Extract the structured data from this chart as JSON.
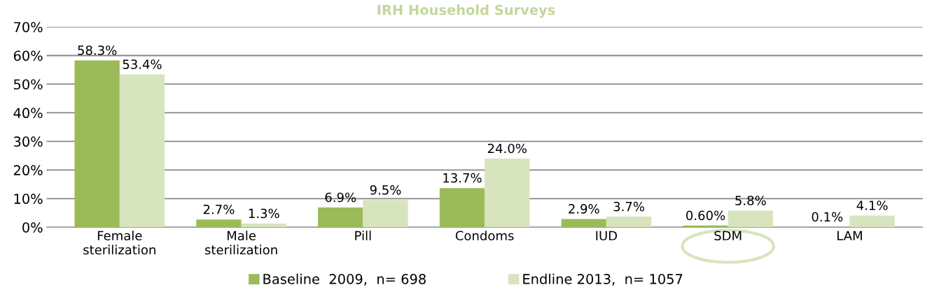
{
  "chart_data": {
    "type": "bar",
    "title": "IRH Household Surveys",
    "categories": [
      "Female\nsterilization",
      "Male\nsterilization",
      "Pill",
      "Condoms",
      "IUD",
      "SDM",
      "LAM"
    ],
    "series": [
      {
        "name": "Baseline  2009,  n= 698",
        "color": "#9bbb59",
        "values": [
          58.3,
          2.7,
          6.9,
          13.7,
          2.9,
          0.6,
          0.1
        ],
        "value_labels": [
          "58.3%",
          "2.7%",
          "6.9%",
          "13.7%",
          "2.9%",
          "0.60%",
          "0.1%"
        ]
      },
      {
        "name": "Endline 2013,  n= 1057",
        "color": "#d7e4bd",
        "values": [
          53.4,
          1.3,
          9.5,
          24.0,
          3.7,
          5.8,
          4.1
        ],
        "value_labels": [
          "53.4%",
          "1.3%",
          "9.5%",
          "24.0%",
          "3.7%",
          "5.8%",
          "4.1%"
        ]
      }
    ],
    "ylim": [
      0,
      70
    ],
    "yticks": [
      {
        "value": 0,
        "label": "0%"
      },
      {
        "value": 10,
        "label": "10%"
      },
      {
        "value": 20,
        "label": "20%"
      },
      {
        "value": 30,
        "label": "30%"
      },
      {
        "value": 40,
        "label": "40%"
      },
      {
        "value": 50,
        "label": "50%"
      },
      {
        "value": 60,
        "label": "60%"
      },
      {
        "value": 70,
        "label": "70%"
      }
    ],
    "grid": "y",
    "legend": "bottom"
  }
}
